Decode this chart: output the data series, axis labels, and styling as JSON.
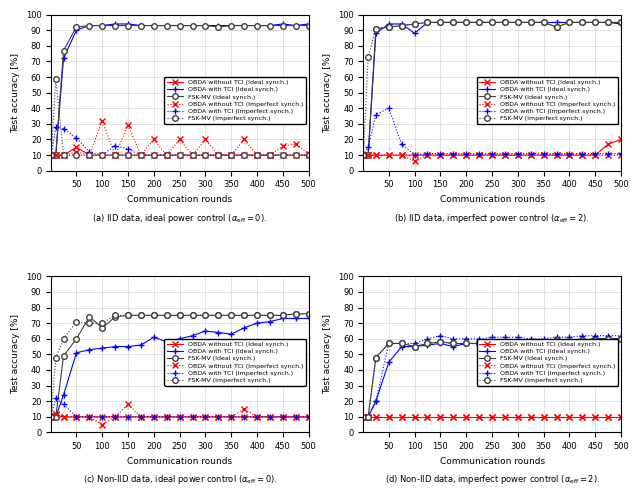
{
  "rounds": [
    1,
    10,
    25,
    50,
    75,
    100,
    125,
    150,
    175,
    200,
    225,
    250,
    275,
    300,
    325,
    350,
    375,
    400,
    425,
    450,
    475,
    500
  ],
  "subplot_a": {
    "title": "(a) IID data, ideal power control ($\\alpha_{\\mathrm{eff}} = 0$).",
    "obda_no_tci_ideal": [
      10,
      10,
      10,
      15,
      10,
      10,
      10,
      10,
      10,
      10,
      10,
      10,
      10,
      10,
      10,
      10,
      10,
      10,
      10,
      10,
      10,
      10
    ],
    "obda_tci_ideal": [
      10,
      10,
      72,
      90,
      93,
      93,
      94,
      94,
      93,
      93,
      93,
      93,
      93,
      93,
      93,
      93,
      93,
      93,
      93,
      94,
      93,
      94
    ],
    "fsk_mv_ideal": [
      10,
      10,
      77,
      92,
      93,
      93,
      93,
      93,
      93,
      93,
      93,
      93,
      93,
      93,
      92,
      93,
      93,
      93,
      93,
      93,
      93,
      93
    ],
    "obda_no_tci_imperf": [
      10,
      10,
      10,
      12,
      10,
      32,
      10,
      29,
      10,
      20,
      10,
      20,
      10,
      20,
      10,
      10,
      20,
      10,
      10,
      16,
      17,
      11
    ],
    "obda_tci_imperf": [
      10,
      28,
      27,
      21,
      12,
      10,
      16,
      14,
      10,
      10,
      10,
      10,
      10,
      10,
      10,
      10,
      10,
      10,
      10,
      10,
      10,
      10
    ],
    "fsk_mv_imperf": [
      10,
      59,
      10,
      10,
      10,
      10,
      10,
      10,
      10,
      10,
      10,
      10,
      10,
      10,
      10,
      10,
      10,
      10,
      10,
      10,
      10,
      10
    ]
  },
  "subplot_b": {
    "title": "(b) IID data, imperfect power control ($\\alpha_{\\mathrm{eff}} = 2$).",
    "obda_no_tci_ideal": [
      10,
      10,
      10,
      10,
      10,
      10,
      10,
      10,
      10,
      10,
      10,
      10,
      10,
      10,
      10,
      10,
      10,
      10,
      10,
      10,
      17,
      20
    ],
    "obda_tci_ideal": [
      10,
      10,
      88,
      94,
      94,
      88,
      95,
      95,
      95,
      95,
      95,
      95,
      95,
      95,
      95,
      95,
      95,
      95,
      95,
      95,
      95,
      94
    ],
    "fsk_mv_ideal": [
      10,
      10,
      91,
      92,
      93,
      94,
      95,
      95,
      95,
      95,
      95,
      95,
      95,
      95,
      95,
      95,
      92,
      95,
      95,
      95,
      95,
      95
    ],
    "obda_no_tci_imperf": [
      10,
      10,
      10,
      10,
      10,
      6,
      10,
      10,
      10,
      10,
      10,
      10,
      10,
      10,
      10,
      10,
      10,
      10,
      10,
      10,
      10,
      10
    ],
    "obda_tci_imperf": [
      10,
      15,
      36,
      40,
      17,
      10,
      11,
      11,
      11,
      11,
      11,
      11,
      11,
      11,
      11,
      11,
      11,
      11,
      11,
      11,
      11,
      11
    ],
    "fsk_mv_imperf": [
      10,
      73,
      91,
      92,
      93,
      94,
      95,
      95,
      95,
      95,
      95,
      95,
      95,
      95,
      95,
      95,
      92,
      95,
      95,
      95,
      95,
      95
    ]
  },
  "subplot_c": {
    "title": "(c) Non-IID data, ideal power control ($\\alpha_{\\mathrm{eff}} = 0$).",
    "obda_no_tci_ideal": [
      10,
      11,
      10,
      10,
      10,
      10,
      10,
      10,
      10,
      10,
      10,
      10,
      10,
      10,
      10,
      10,
      10,
      10,
      10,
      10,
      10,
      10
    ],
    "obda_tci_ideal": [
      10,
      10,
      24,
      51,
      53,
      54,
      55,
      55,
      56,
      61,
      58,
      60,
      62,
      65,
      64,
      63,
      67,
      70,
      71,
      73,
      73,
      73
    ],
    "fsk_mv_ideal": [
      10,
      10,
      49,
      60,
      74,
      67,
      74,
      75,
      75,
      75,
      75,
      75,
      75,
      75,
      75,
      75,
      75,
      75,
      75,
      75,
      76,
      76
    ],
    "obda_no_tci_imperf": [
      10,
      12,
      10,
      10,
      10,
      5,
      10,
      18,
      10,
      10,
      10,
      10,
      10,
      10,
      10,
      10,
      15,
      10,
      10,
      10,
      10,
      10
    ],
    "obda_tci_imperf": [
      10,
      22,
      18,
      10,
      10,
      10,
      10,
      10,
      10,
      10,
      10,
      10,
      10,
      10,
      10,
      10,
      10,
      10,
      10,
      10,
      10,
      10
    ],
    "fsk_mv_imperf": [
      10,
      48,
      60,
      71,
      70,
      70,
      75,
      75,
      75,
      75,
      75,
      75,
      75,
      75,
      75,
      75,
      75,
      75,
      75,
      75,
      76,
      76
    ]
  },
  "subplot_d": {
    "title": "(d) Non-IID data, imperfect power control ($\\alpha_{\\mathrm{eff}} = 2$).",
    "obda_no_tci_ideal": [
      10,
      10,
      10,
      10,
      10,
      10,
      10,
      10,
      10,
      10,
      10,
      10,
      10,
      10,
      10,
      10,
      10,
      10,
      10,
      10,
      10,
      10
    ],
    "obda_tci_ideal": [
      10,
      10,
      20,
      45,
      55,
      55,
      56,
      57,
      55,
      57,
      57,
      58,
      58,
      58,
      57,
      58,
      59,
      58,
      59,
      60,
      60,
      60
    ],
    "fsk_mv_ideal": [
      10,
      10,
      48,
      57,
      57,
      55,
      57,
      58,
      57,
      57,
      57,
      58,
      58,
      58,
      57,
      56,
      59,
      58,
      59,
      60,
      60,
      60
    ],
    "obda_no_tci_imperf": [
      10,
      10,
      10,
      10,
      10,
      10,
      10,
      10,
      10,
      10,
      10,
      10,
      10,
      10,
      10,
      10,
      10,
      10,
      10,
      10,
      10,
      10
    ],
    "obda_tci_imperf": [
      10,
      10,
      20,
      57,
      57,
      57,
      60,
      62,
      60,
      60,
      60,
      61,
      61,
      61,
      60,
      60,
      61,
      61,
      62,
      62,
      62,
      62
    ],
    "fsk_mv_imperf": [
      10,
      10,
      48,
      57,
      57,
      55,
      57,
      58,
      57,
      57,
      57,
      58,
      58,
      58,
      57,
      56,
      59,
      58,
      59,
      59,
      60,
      60
    ]
  },
  "colors": {
    "obda_no_tci": "#ff0000",
    "obda_tci": "#0000ff",
    "fsk_mv": "#404040"
  },
  "xlabel": "Communication rounds",
  "ylabel": "Test accuracy [%]",
  "ylim_ab": [
    0,
    100
  ],
  "ylim_cd": [
    0,
    100
  ],
  "yticks_ab": [
    0,
    10,
    20,
    30,
    40,
    50,
    60,
    70,
    80,
    90,
    100
  ],
  "yticks_cd": [
    0,
    10,
    20,
    30,
    40,
    50,
    60,
    70,
    80,
    90,
    100
  ],
  "xticks": [
    50,
    100,
    150,
    200,
    250,
    300,
    350,
    400,
    450,
    500
  ],
  "legend_labels": [
    "OBDA without TCI (Ideal synch.)",
    "OBDA with TCI (Ideal synch.)",
    "FSK-MV (Ideal synch.)",
    "OBDA without TCI (Imperfect synch.)",
    "OBDA with TCI (Imperfect synch.)",
    "FSK-MV (Imperfect synch.)"
  ]
}
